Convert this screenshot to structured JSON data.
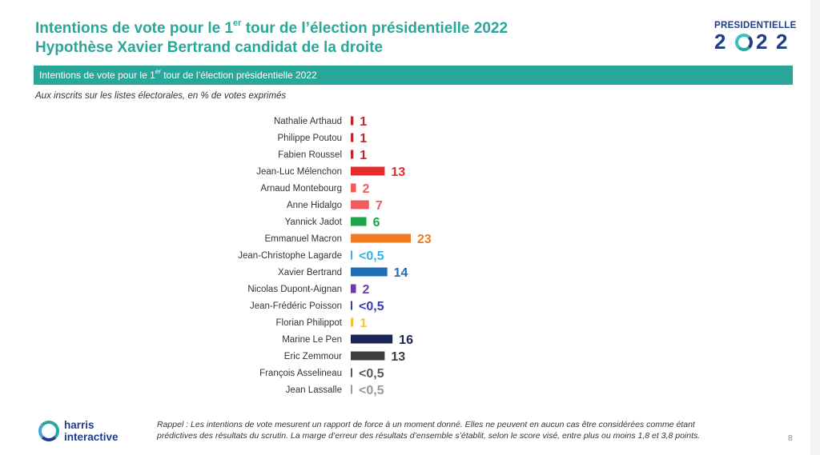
{
  "header": {
    "title_line1_pre": "Intentions de vote pour le 1",
    "title_line1_sup": "er",
    "title_line1_post": " tour de l’élection présidentielle 2022",
    "title_line2": "Hypothèse Xavier Bertrand candidat de la droite"
  },
  "logo": {
    "word": "PRESIDENTIELLE",
    "year_digits": [
      "2",
      "2",
      "2"
    ]
  },
  "banner": {
    "pre": "Intentions de vote pour le 1",
    "sup": "er",
    "post": " tour de l’élection présidentielle 2022"
  },
  "subtitle": "Aux inscrits sur les listes électorales, en % de votes exprimés",
  "footer": {
    "note_line1": "Rappel : Les intentions de vote mesurent un rapport de force à un moment donné. Elles ne peuvent en aucun cas être considérées comme étant",
    "note_line2": "prédictives des résultats du scrutin. La marge d’erreur des résultats d’ensemble s’établit, selon le score visé, entre plus ou moins 1,8 et 3,8 points.",
    "page_number": "8",
    "brand_line1": "harris",
    "brand_line2": "interactive"
  },
  "chart_data": {
    "type": "bar",
    "orientation": "horizontal",
    "xlim": [
      0,
      23
    ],
    "grid": false,
    "categories": [
      "Nathalie Arthaud",
      "Philippe Poutou",
      "Fabien Roussel",
      "Jean-Luc Mélenchon",
      "Arnaud Montebourg",
      "Anne Hidalgo",
      "Yannick Jadot",
      "Emmanuel Macron",
      "Jean-Christophe Lagarde",
      "Xavier Bertrand",
      "Nicolas Dupont-Aignan",
      "Jean-Frédéric Poisson",
      "Florian Philippot",
      "Marine Le Pen",
      "Eric Zemmour",
      "François Asselineau",
      "Jean Lassalle"
    ],
    "values": [
      1,
      1,
      1,
      13,
      2,
      7,
      6,
      23,
      0.5,
      14,
      2,
      0.5,
      1,
      16,
      13,
      0.5,
      0.5
    ],
    "labels": [
      "1",
      "1",
      "1",
      "13",
      "2",
      "7",
      "6",
      "23",
      "<0,5",
      "14",
      "2",
      "<0,5",
      "1",
      "16",
      "13",
      "<0,5",
      "<0,5"
    ],
    "colors": [
      "#c0272d",
      "#c0272d",
      "#c0272d",
      "#e32b2b",
      "#ef5a5a",
      "#f25c5c",
      "#1fa34a",
      "#ef7b22",
      "#2eb6e6",
      "#1f6db5",
      "#6b3fa0",
      "#3a3ab8",
      "#f5c232",
      "#1b2556",
      "#3d3d3d",
      "#5a5a5a",
      "#9a9a9a"
    ]
  }
}
